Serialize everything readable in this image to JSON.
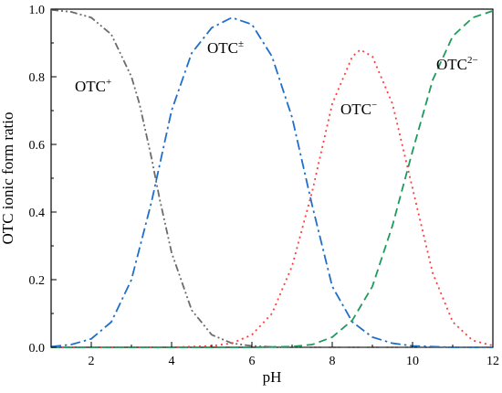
{
  "chart_data": {
    "type": "line",
    "xlabel": "pH",
    "ylabel": "OTC ionic form ratio",
    "xlim": [
      1,
      12
    ],
    "ylim": [
      0,
      1.0
    ],
    "xticks": [
      2,
      4,
      6,
      8,
      10,
      12
    ],
    "xtick_labels": [
      "2",
      "4",
      "6",
      "8",
      "10",
      "12"
    ],
    "yticks": [
      0,
      0.2,
      0.4,
      0.6,
      0.8,
      1.0
    ],
    "ytick_labels": [
      "0.0",
      "0.2",
      "0.4",
      "0.6",
      "0.8",
      "1.0"
    ],
    "grid": false,
    "legend": "none",
    "series": [
      {
        "name": "OTC+",
        "label_base": "OTC",
        "label_sup": "+",
        "color": "#6b6b6b",
        "dash": "dash-dot-dot",
        "x": [
          1,
          1.5,
          2,
          2.5,
          3,
          3.2,
          3.5,
          3.7,
          4,
          4.5,
          5,
          5.5,
          6,
          6.5,
          7,
          8,
          9,
          10,
          11,
          12
        ],
        "y": [
          0.998,
          0.992,
          0.975,
          0.925,
          0.8,
          0.72,
          0.56,
          0.44,
          0.28,
          0.11,
          0.037,
          0.012,
          0.004,
          0.001,
          0.0,
          0.0,
          0.0,
          0.0,
          0.0,
          0.0
        ]
      },
      {
        "name": "OTC±",
        "label_base": "OTC",
        "label_sup": "±",
        "color": "#1f6fc9",
        "dash": "dash-dot",
        "x": [
          1,
          1.5,
          2,
          2.5,
          3,
          3.5,
          4,
          4.5,
          5,
          5.5,
          6,
          6.5,
          7,
          7.5,
          8,
          8.5,
          9,
          9.5,
          10,
          11,
          12
        ],
        "y": [
          0.002,
          0.008,
          0.025,
          0.075,
          0.2,
          0.43,
          0.7,
          0.87,
          0.945,
          0.975,
          0.955,
          0.86,
          0.68,
          0.42,
          0.18,
          0.075,
          0.03,
          0.012,
          0.004,
          0.0,
          0.0
        ]
      },
      {
        "name": "OTC−",
        "label_base": "OTC",
        "label_sup": "−",
        "color": "#ff3b3b",
        "dash": "dot",
        "x": [
          1,
          4,
          5,
          5.5,
          6,
          6.5,
          7,
          7.5,
          8,
          8.5,
          8.7,
          9,
          9.5,
          10,
          10.5,
          11,
          11.5,
          12
        ],
        "y": [
          0.0,
          0.0,
          0.004,
          0.012,
          0.037,
          0.1,
          0.24,
          0.46,
          0.72,
          0.86,
          0.88,
          0.86,
          0.72,
          0.47,
          0.22,
          0.075,
          0.02,
          0.005
        ]
      },
      {
        "name": "OTC2−",
        "label_base": "OTC",
        "label_sup": "2−",
        "color": "#1e9a5a",
        "dash": "dash",
        "x": [
          1,
          6,
          7,
          7.5,
          8,
          8.5,
          9,
          9.5,
          10,
          10.5,
          11,
          11.5,
          12
        ],
        "y": [
          0.0,
          0.0,
          0.002,
          0.008,
          0.03,
          0.08,
          0.18,
          0.36,
          0.58,
          0.79,
          0.92,
          0.975,
          0.995
        ]
      }
    ]
  }
}
